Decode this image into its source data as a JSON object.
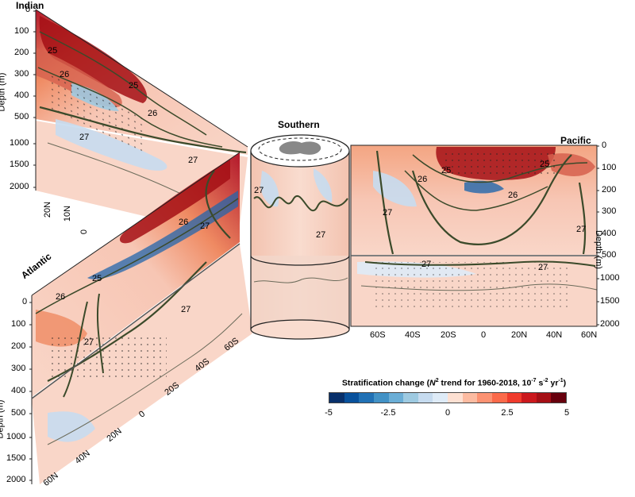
{
  "basins": {
    "indian": "Indian",
    "southern": "Southern",
    "pacific": "Pacific",
    "atlantic": "Atlantic"
  },
  "depth_title": "Depth (m)",
  "indian": {
    "depth_ticks": [
      "0",
      "100",
      "200",
      "300",
      "400",
      "500",
      "1000",
      "1500",
      "2000"
    ],
    "lat_ticks": [
      "20N",
      "10N",
      "0"
    ],
    "isopycnals": [
      "25",
      "26",
      "25",
      "26",
      "27",
      "27"
    ]
  },
  "atlantic": {
    "depth_ticks": [
      "0",
      "100",
      "200",
      "300",
      "400",
      "500",
      "1000",
      "1500",
      "2000"
    ],
    "lat_ticks": [
      "60N",
      "40N",
      "20N",
      "0",
      "20S",
      "40S",
      "60S"
    ],
    "isopycnals": [
      "26",
      "27",
      "27",
      "27",
      "25",
      "26"
    ]
  },
  "southern": {
    "isopycnals": [
      "27",
      "27"
    ]
  },
  "pacific": {
    "depth_ticks": [
      "0",
      "100",
      "200",
      "300",
      "400",
      "500",
      "1000",
      "1500",
      "2000"
    ],
    "lat_ticks": [
      "60S",
      "40S",
      "20S",
      "0",
      "20N",
      "40N",
      "60N"
    ],
    "isopycnals": [
      "25",
      "26",
      "25",
      "26",
      "27",
      "27",
      "27",
      "27"
    ]
  },
  "colorbar": {
    "title_pre": "Stratification change (",
    "title_n": "N",
    "title_sup2": "2",
    "title_mid": " trend for 1960-2018, 10",
    "title_supm7": "-7",
    "title_s": " s",
    "title_supm2": "-2",
    "title_yr": " yr",
    "title_supm1": "-1",
    "title_post": ")",
    "ticks": [
      "-5",
      "-2.5",
      "0",
      "2.5",
      "5"
    ],
    "colors": [
      "#08306b",
      "#08519c",
      "#2171b5",
      "#4292c6",
      "#6baed6",
      "#9ecae1",
      "#c6dbef",
      "#deebf7",
      "#fde0d2",
      "#fcbba1",
      "#fc9272",
      "#fb6a4a",
      "#ef3b2c",
      "#cb181d",
      "#a50f15",
      "#67000d"
    ]
  },
  "colors": {
    "background_red": "#f7c6b4",
    "background_blue": "#cfe0f2",
    "contour": "#3b4a2a",
    "strong_red": "#b2182b",
    "strong_blue": "#2166ac"
  }
}
